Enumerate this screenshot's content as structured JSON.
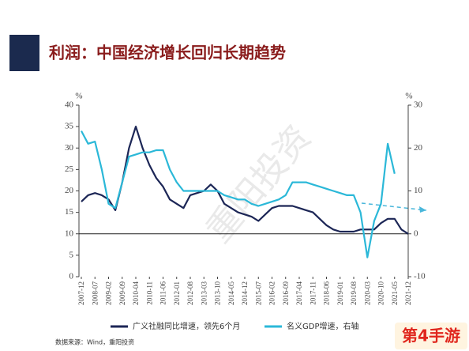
{
  "header": {
    "title": "利润：中国经济增长回归长期趋势"
  },
  "chart_data": {
    "type": "line",
    "y_unit": "%",
    "y2_unit": "%",
    "categories": [
      "2007-12",
      null,
      "2008-07",
      null,
      "2009-02",
      null,
      "2009-09",
      null,
      "2010-04",
      null,
      "2010-11",
      null,
      "2011-06",
      null,
      "2012-01",
      null,
      "2012-08",
      null,
      "2013-03",
      null,
      "2013-10",
      null,
      "2014-05",
      null,
      "2014-12",
      null,
      "2015-07",
      null,
      "2016-02",
      null,
      "2016-09",
      null,
      "2017-04",
      null,
      "2017-11",
      null,
      "2018-06",
      null,
      "2019-01",
      null,
      "2019-08",
      null,
      "2020-03",
      null,
      "2020-10",
      null,
      "2021-05",
      null,
      "2021-12"
    ],
    "series": [
      {
        "name": "广义社融同比增速，领先6个月",
        "color": "#1c2656",
        "values": [
          17.5,
          19,
          19.5,
          19,
          18,
          15.5,
          22,
          30,
          35,
          30,
          26,
          23,
          21,
          18,
          17,
          16,
          19,
          19.5,
          20,
          21.5,
          20,
          17,
          16,
          15,
          14.5,
          14,
          13,
          14.5,
          16,
          16.5,
          16.5,
          16.5,
          16,
          15.5,
          15,
          13.5,
          12,
          11,
          10.5,
          10.5,
          10.5,
          11,
          11,
          11,
          12.5,
          13.5,
          13.5,
          11,
          10
        ]
      },
      {
        "name": "名义GDP增速，右轴",
        "color": "#2bb8d8",
        "axis": "y2",
        "values": [
          24,
          21,
          21.5,
          15,
          7,
          6,
          12,
          18,
          18.5,
          19,
          19,
          19.5,
          19.5,
          15,
          12,
          10,
          10,
          10,
          10,
          10,
          10,
          9,
          8.5,
          8,
          8,
          7,
          6.5,
          7,
          7.5,
          8,
          9,
          12,
          12,
          12,
          11.5,
          11,
          10.5,
          10,
          9.5,
          9,
          9,
          5,
          -5.5,
          3,
          7,
          21,
          14,
          null,
          null
        ]
      }
    ],
    "ylim": [
      0,
      40
    ],
    "yticks": [
      0,
      5,
      10,
      15,
      20,
      25,
      30,
      35,
      40
    ],
    "y2lim": [
      -10,
      30
    ],
    "y2ticks": [
      -10,
      0,
      10,
      20,
      30
    ],
    "source": "数据来源：Wind，重阳投资",
    "watermark": "重阳投资",
    "logo": "第4手游"
  }
}
